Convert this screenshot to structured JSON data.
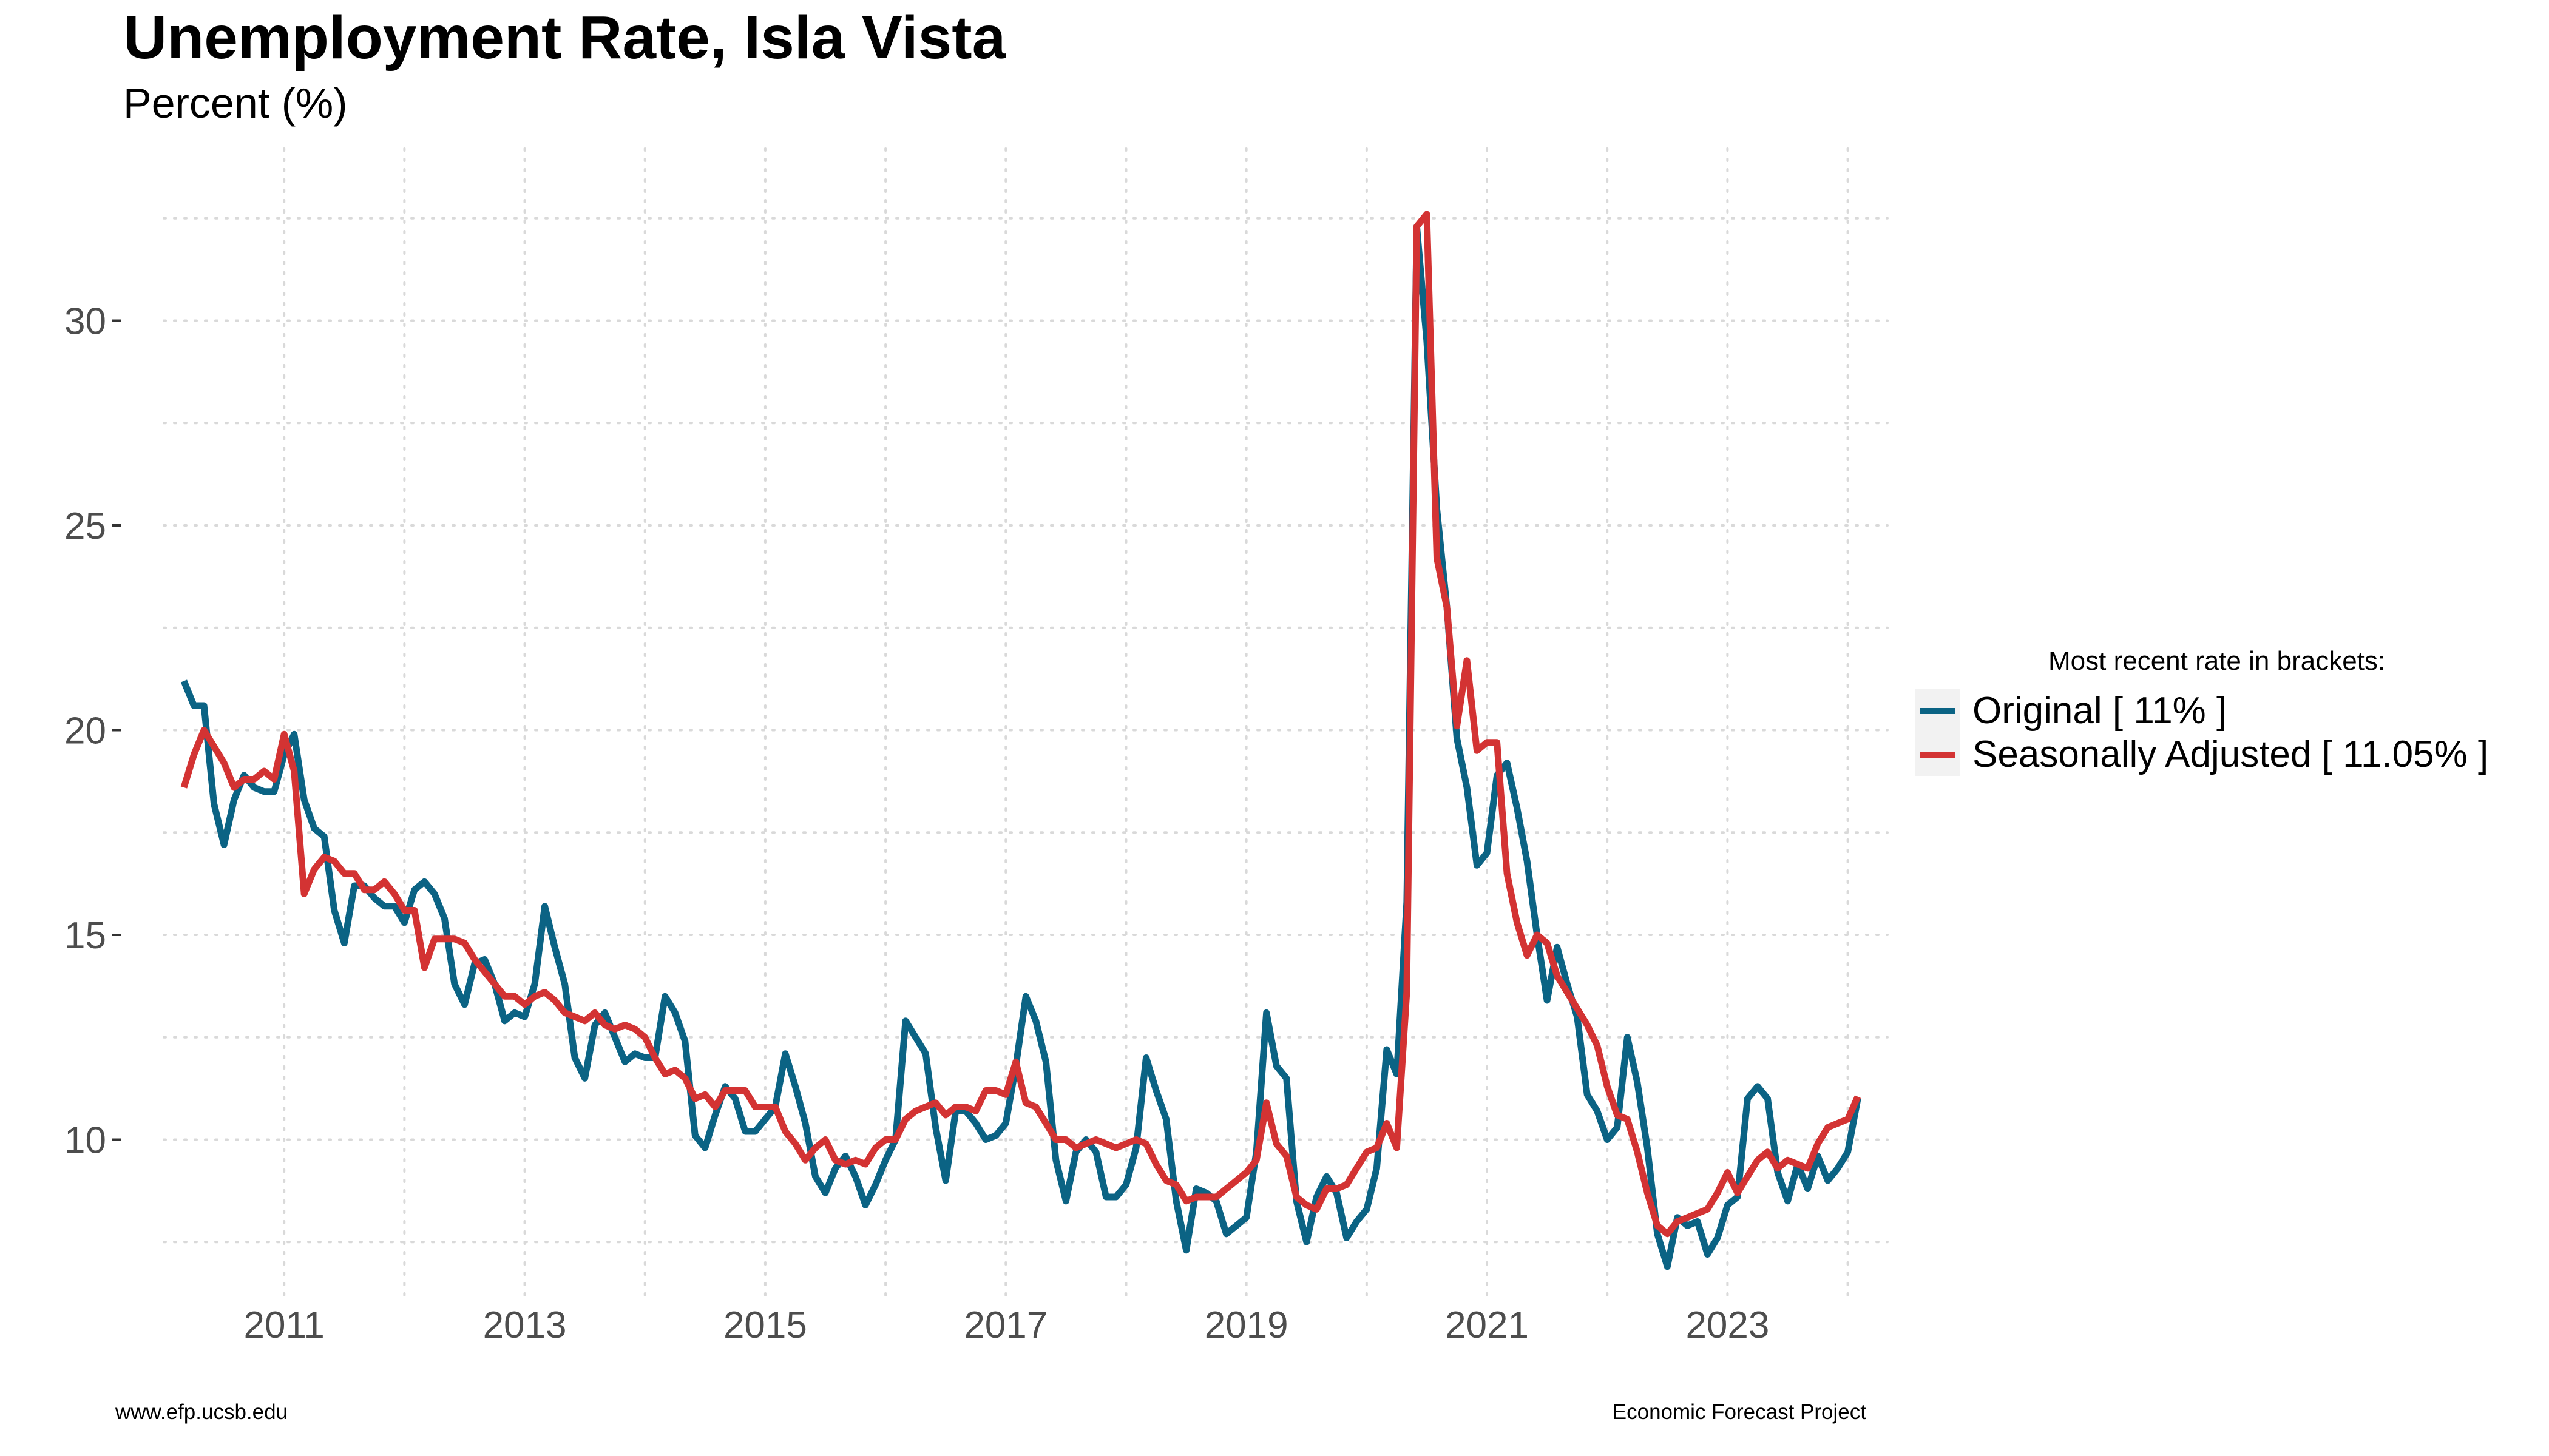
{
  "header": {
    "title": "Unemployment Rate, Isla Vista",
    "subtitle": "Percent (%)"
  },
  "legend": {
    "title": "Most recent rate in brackets:",
    "items": [
      {
        "label": "Original [ 11% ]",
        "color": "#0b6384"
      },
      {
        "label": "Seasonally Adjusted [ 11.05% ]",
        "color": "#d33333"
      }
    ]
  },
  "footer": {
    "left": "www.efp.ucsb.edu",
    "right": "Economic Forecast Project"
  },
  "chart_data": {
    "type": "line",
    "title": "Unemployment Rate, Isla Vista",
    "subtitle": "Percent (%)",
    "xlabel": "",
    "ylabel": "",
    "x_start": "2010-03",
    "x_frequency": "monthly",
    "xlim": [
      2010.0,
      2024.33
    ],
    "ylim": [
      6.2,
      34.2
    ],
    "x_ticks": [
      2011,
      2013,
      2015,
      2017,
      2019,
      2021,
      2023
    ],
    "y_ticks": [
      10,
      15,
      20,
      25,
      30
    ],
    "grid": true,
    "legend_position": "right",
    "series": [
      {
        "name": "Original",
        "color": "#0b6384",
        "values": [
          21.2,
          20.6,
          20.6,
          18.2,
          17.2,
          18.3,
          18.9,
          18.6,
          18.5,
          18.5,
          19.4,
          19.9,
          18.3,
          17.6,
          17.4,
          15.6,
          14.8,
          16.2,
          16.2,
          15.9,
          15.7,
          15.7,
          15.3,
          16.1,
          16.3,
          16.0,
          15.4,
          13.8,
          13.3,
          14.3,
          14.4,
          13.8,
          12.9,
          13.1,
          13.0,
          13.8,
          15.7,
          14.7,
          13.8,
          12.0,
          11.5,
          12.8,
          13.1,
          12.5,
          11.9,
          12.1,
          12.0,
          12.0,
          13.5,
          13.1,
          12.4,
          10.1,
          9.8,
          10.6,
          11.3,
          11.0,
          10.2,
          10.2,
          10.5,
          10.8,
          12.1,
          11.3,
          10.4,
          9.1,
          8.7,
          9.3,
          9.6,
          9.1,
          8.4,
          8.9,
          9.5,
          10.0,
          12.9,
          12.5,
          12.1,
          10.3,
          9.0,
          10.7,
          10.7,
          10.4,
          10.0,
          10.1,
          10.4,
          11.8,
          13.5,
          12.9,
          11.9,
          9.5,
          8.5,
          9.7,
          10.0,
          9.7,
          8.6,
          8.6,
          8.9,
          9.8,
          12.0,
          11.2,
          10.5,
          8.5,
          7.3,
          8.8,
          8.7,
          8.5,
          7.7,
          7.9,
          8.1,
          9.7,
          13.1,
          11.8,
          11.5,
          8.5,
          7.5,
          8.6,
          9.1,
          8.7,
          7.6,
          8.0,
          8.3,
          9.3,
          12.2,
          11.6,
          15.8,
          32.3,
          29.5,
          25.4,
          23.0,
          19.8,
          18.6,
          16.7,
          17.0,
          18.9,
          19.2,
          18.1,
          16.8,
          15.0,
          13.4,
          14.7,
          13.8,
          13.0,
          11.1,
          10.7,
          10.0,
          10.3,
          12.5,
          11.4,
          9.8,
          7.7,
          6.9,
          8.1,
          7.9,
          8.0,
          7.2,
          7.6,
          8.4,
          8.6,
          11.0,
          11.3,
          11.0,
          9.2,
          8.5,
          9.4,
          8.8,
          9.6,
          9.0,
          9.3,
          9.7,
          11.0
        ]
      },
      {
        "name": "Seasonally Adjusted",
        "color": "#d33333",
        "values": [
          18.6,
          19.4,
          20.0,
          19.6,
          19.2,
          18.6,
          18.8,
          18.8,
          19.0,
          18.8,
          19.9,
          19.0,
          16.0,
          16.6,
          16.9,
          16.8,
          16.5,
          16.5,
          16.1,
          16.1,
          16.3,
          16.0,
          15.6,
          15.6,
          14.2,
          14.9,
          14.9,
          14.9,
          14.8,
          14.4,
          14.1,
          13.8,
          13.5,
          13.5,
          13.3,
          13.5,
          13.6,
          13.4,
          13.1,
          13.0,
          12.9,
          13.1,
          12.8,
          12.7,
          12.8,
          12.7,
          12.5,
          12.0,
          11.6,
          11.7,
          11.5,
          11.0,
          11.1,
          10.8,
          11.2,
          11.2,
          11.2,
          10.8,
          10.8,
          10.8,
          10.2,
          9.9,
          9.5,
          9.8,
          10.0,
          9.5,
          9.4,
          9.5,
          9.4,
          9.8,
          10.0,
          10.0,
          10.5,
          10.7,
          10.8,
          10.9,
          10.6,
          10.8,
          10.8,
          10.7,
          11.2,
          11.2,
          11.1,
          11.9,
          10.9,
          10.8,
          10.4,
          10.0,
          10.0,
          9.8,
          9.9,
          10.0,
          9.9,
          9.8,
          9.9,
          10.0,
          9.9,
          9.4,
          9.0,
          8.9,
          8.5,
          8.6,
          8.6,
          8.6,
          8.8,
          9.0,
          9.2,
          9.5,
          10.9,
          9.9,
          9.6,
          8.6,
          8.4,
          8.3,
          8.8,
          8.8,
          8.9,
          9.3,
          9.7,
          9.8,
          10.4,
          9.8,
          13.6,
          32.3,
          32.6,
          24.2,
          23.0,
          20.1,
          21.7,
          19.5,
          19.7,
          19.7,
          16.5,
          15.3,
          14.5,
          15.0,
          14.8,
          14.0,
          13.6,
          13.2,
          12.8,
          12.3,
          11.3,
          10.6,
          10.5,
          9.7,
          8.7,
          7.9,
          7.7,
          8.0,
          8.1,
          8.2,
          8.3,
          8.7,
          9.2,
          8.7,
          9.1,
          9.5,
          9.7,
          9.3,
          9.5,
          9.4,
          9.3,
          9.9,
          10.3,
          10.4,
          10.5,
          11.05
        ]
      }
    ]
  }
}
